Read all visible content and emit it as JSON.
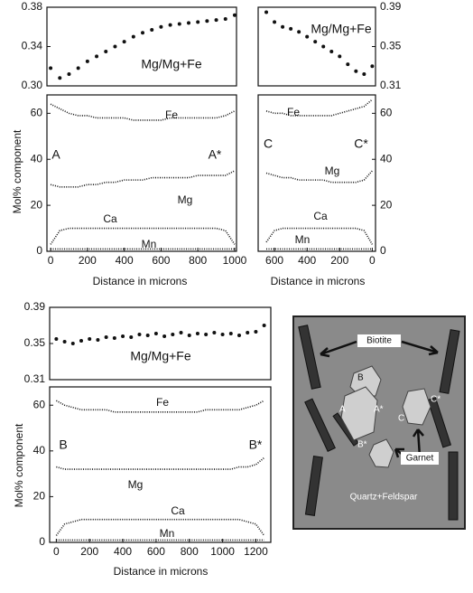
{
  "chart_data": [
    {
      "type": "scatter",
      "annotations": [
        "Mg/Mg+Fe"
      ],
      "x": [
        0,
        50,
        100,
        150,
        200,
        250,
        300,
        350,
        400,
        450,
        500,
        550,
        600,
        650,
        700,
        750,
        800,
        850,
        900,
        950,
        1000
      ],
      "values": [
        0.318,
        0.308,
        0.312,
        0.318,
        0.325,
        0.33,
        0.335,
        0.34,
        0.345,
        0.35,
        0.354,
        0.357,
        0.36,
        0.362,
        0.363,
        0.364,
        0.365,
        0.366,
        0.367,
        0.368,
        0.372
      ],
      "color": "#111",
      "xlim": [
        -20,
        1010
      ],
      "ylim": [
        0.3,
        0.38
      ],
      "yticks": [
        {
          "value": 0.3,
          "label": "0.30"
        },
        0.34,
        0.38
      ],
      "y_axis_side": "left"
    },
    {
      "type": "line",
      "annotations": [
        "A",
        "A*"
      ],
      "xlabel": "Distance in microns",
      "ylabel": "Mol% component",
      "x": [
        0,
        50,
        100,
        150,
        200,
        250,
        300,
        350,
        400,
        450,
        500,
        550,
        600,
        650,
        700,
        750,
        800,
        850,
        900,
        950,
        1000
      ],
      "series": [
        {
          "name": "Fe",
          "color": "#111",
          "values": [
            64,
            62,
            60,
            59,
            59,
            58,
            58,
            58,
            58,
            57,
            57,
            57,
            57,
            58,
            58,
            58,
            58,
            58,
            58,
            59,
            61
          ]
        },
        {
          "name": "Mg",
          "color": "#111",
          "values": [
            29,
            28,
            28,
            28,
            29,
            29,
            30,
            30,
            31,
            31,
            31,
            32,
            32,
            32,
            32,
            32,
            33,
            33,
            33,
            33,
            35
          ]
        },
        {
          "name": "Ca",
          "color": "#111",
          "values": [
            3,
            9,
            10,
            10,
            10,
            10,
            10,
            10,
            10,
            10,
            10,
            10,
            10,
            10,
            10,
            10,
            10,
            10,
            10,
            9,
            3
          ]
        },
        {
          "name": "Mn",
          "color": "#111",
          "values": [
            1,
            1,
            1,
            1,
            1,
            1,
            1,
            1,
            1,
            1,
            1,
            1,
            1,
            1,
            1,
            1,
            1,
            1,
            1,
            1,
            1
          ]
        }
      ],
      "xlim": [
        -20,
        1010
      ],
      "ylim": [
        0,
        68
      ],
      "xticks": [
        0,
        200,
        400,
        600,
        800,
        1000
      ],
      "yticks": [
        0,
        20,
        40,
        60
      ],
      "y_axis_side": "left"
    },
    {
      "type": "scatter",
      "annotations": [
        "Mg/Mg+Fe"
      ],
      "x": [
        650,
        600,
        550,
        500,
        450,
        400,
        350,
        300,
        250,
        200,
        150,
        100,
        50,
        0
      ],
      "values": [
        0.385,
        0.375,
        0.37,
        0.368,
        0.365,
        0.36,
        0.355,
        0.35,
        0.345,
        0.34,
        0.332,
        0.325,
        0.322,
        0.33
      ],
      "color": "#111",
      "xlim": [
        700,
        -20
      ],
      "ylim": [
        0.31,
        0.39
      ],
      "yticks": [
        0.31,
        0.35,
        0.39
      ],
      "y_axis_side": "right"
    },
    {
      "type": "line",
      "annotations": [
        "C",
        "C*"
      ],
      "xlabel": "Distance in microns",
      "x": [
        650,
        600,
        550,
        500,
        450,
        400,
        350,
        300,
        250,
        200,
        150,
        100,
        50,
        0
      ],
      "series": [
        {
          "name": "Fe",
          "color": "#111",
          "values": [
            61,
            60,
            60,
            59,
            59,
            59,
            59,
            59,
            59,
            60,
            61,
            62,
            63,
            66
          ]
        },
        {
          "name": "Mg",
          "color": "#111",
          "values": [
            34,
            33,
            32,
            32,
            31,
            31,
            31,
            31,
            30,
            30,
            30,
            30,
            31,
            35
          ]
        },
        {
          "name": "Ca",
          "color": "#111",
          "values": [
            4,
            9,
            10,
            10,
            10,
            10,
            10,
            10,
            10,
            10,
            10,
            10,
            9,
            3
          ]
        },
        {
          "name": "Mn",
          "color": "#111",
          "values": [
            1,
            1,
            1,
            1,
            1,
            1,
            1,
            1,
            1,
            1,
            1,
            1,
            1,
            1
          ]
        }
      ],
      "xlim": [
        700,
        -20
      ],
      "ylim": [
        0,
        68
      ],
      "xticks": [
        600,
        400,
        200,
        0
      ],
      "yticks": [
        0,
        20,
        40,
        60
      ],
      "y_axis_side": "right"
    },
    {
      "type": "scatter",
      "annotations": [
        "Mg/Mg+Fe"
      ],
      "x": [
        0,
        50,
        100,
        150,
        200,
        250,
        300,
        350,
        400,
        450,
        500,
        550,
        600,
        650,
        700,
        750,
        800,
        850,
        900,
        950,
        1000,
        1050,
        1100,
        1150,
        1200,
        1250
      ],
      "values": [
        0.355,
        0.352,
        0.35,
        0.353,
        0.355,
        0.354,
        0.357,
        0.356,
        0.358,
        0.357,
        0.36,
        0.359,
        0.361,
        0.358,
        0.36,
        0.362,
        0.359,
        0.361,
        0.36,
        0.362,
        0.36,
        0.361,
        0.359,
        0.362,
        0.363,
        0.37
      ],
      "color": "#111",
      "xlim": [
        -40,
        1290
      ],
      "ylim": [
        0.31,
        0.39
      ],
      "yticks": [
        0.31,
        0.35,
        0.39
      ],
      "y_axis_side": "left"
    },
    {
      "type": "line",
      "annotations": [
        "B",
        "B*"
      ],
      "xlabel": "Distance in microns",
      "ylabel": "Mol% component",
      "x": [
        0,
        50,
        100,
        150,
        200,
        250,
        300,
        350,
        400,
        450,
        500,
        550,
        600,
        650,
        700,
        750,
        800,
        850,
        900,
        950,
        1000,
        1050,
        1100,
        1150,
        1200,
        1250
      ],
      "series": [
        {
          "name": "Fe",
          "color": "#111",
          "values": [
            62,
            60,
            59,
            58,
            58,
            58,
            58,
            57,
            57,
            57,
            57,
            57,
            57,
            57,
            57,
            57,
            57,
            57,
            58,
            58,
            58,
            58,
            58,
            59,
            60,
            62
          ]
        },
        {
          "name": "Mg",
          "color": "#111",
          "values": [
            33,
            32,
            32,
            32,
            32,
            32,
            32,
            32,
            32,
            32,
            32,
            32,
            32,
            32,
            32,
            32,
            32,
            32,
            32,
            32,
            32,
            32,
            33,
            33,
            34,
            37
          ]
        },
        {
          "name": "Ca",
          "color": "#111",
          "values": [
            3,
            8,
            9,
            10,
            10,
            10,
            10,
            10,
            10,
            10,
            10,
            10,
            10,
            10,
            10,
            10,
            10,
            10,
            10,
            10,
            10,
            10,
            10,
            9,
            8,
            3
          ]
        },
        {
          "name": "Mn",
          "color": "#111",
          "values": [
            1,
            1,
            1,
            1,
            1,
            1,
            1,
            1,
            1,
            1,
            1,
            1,
            1,
            1,
            1,
            1,
            1,
            1,
            1,
            1,
            1,
            1,
            1,
            1,
            1,
            1
          ]
        }
      ],
      "xlim": [
        -40,
        1290
      ],
      "ylim": [
        0,
        68
      ],
      "xticks": [
        0,
        200,
        400,
        600,
        800,
        1000,
        1200
      ],
      "yticks": [
        0,
        20,
        40,
        60
      ],
      "y_axis_side": "left"
    }
  ],
  "diagram": {
    "minerals": [
      "Biotite",
      "Garnet",
      "Quartz+Feldspar"
    ],
    "points": [
      "A",
      "A*",
      "B",
      "B*",
      "C",
      "C*"
    ]
  }
}
